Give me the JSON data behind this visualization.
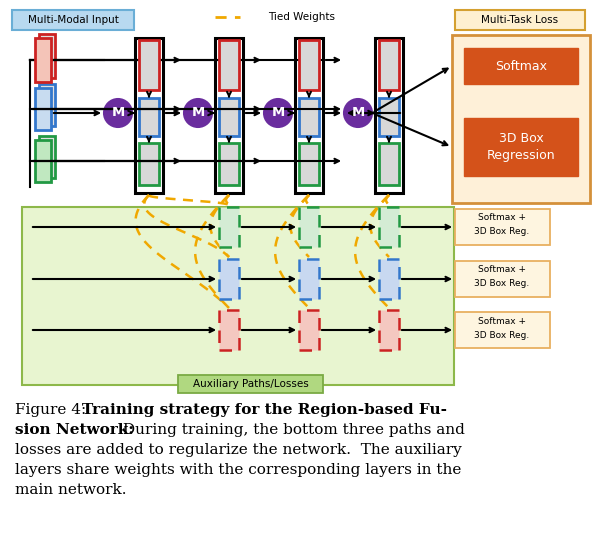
{
  "background_color": "#ffffff",
  "aux_bg_color": "#e8f5d0",
  "aux_bg_ec": "#8db84a",
  "multi_modal_label": "Multi-Modal Input",
  "multi_modal_bg": "#b8d9f0",
  "multi_modal_ec": "#6aaed6",
  "multi_task_label": "Multi-Task Loss",
  "multi_task_bg": "#fdefd8",
  "multi_task_ec": "#e8a84a",
  "tied_weights_label": "Tied Weights",
  "softmax_color": "#d4521a",
  "merge_circle_color": "#6a2d9e",
  "red_ec": "#cc2222",
  "red_fc": "#f0c0b0",
  "blue_ec": "#3377cc",
  "blue_fc": "#c8ddf0",
  "green_ec": "#229944",
  "green_fc": "#c0e8c8",
  "gray_fc": "#d8d8d8",
  "dashed_color": "#f0a800",
  "aux_label": "Auxiliary Paths/Losses",
  "aux_label_bg": "#b0d880",
  "aux_label_ec": "#7aaa44",
  "softmax_box_bg": "#fef5e0",
  "softmax_box_ec": "#e8b060"
}
